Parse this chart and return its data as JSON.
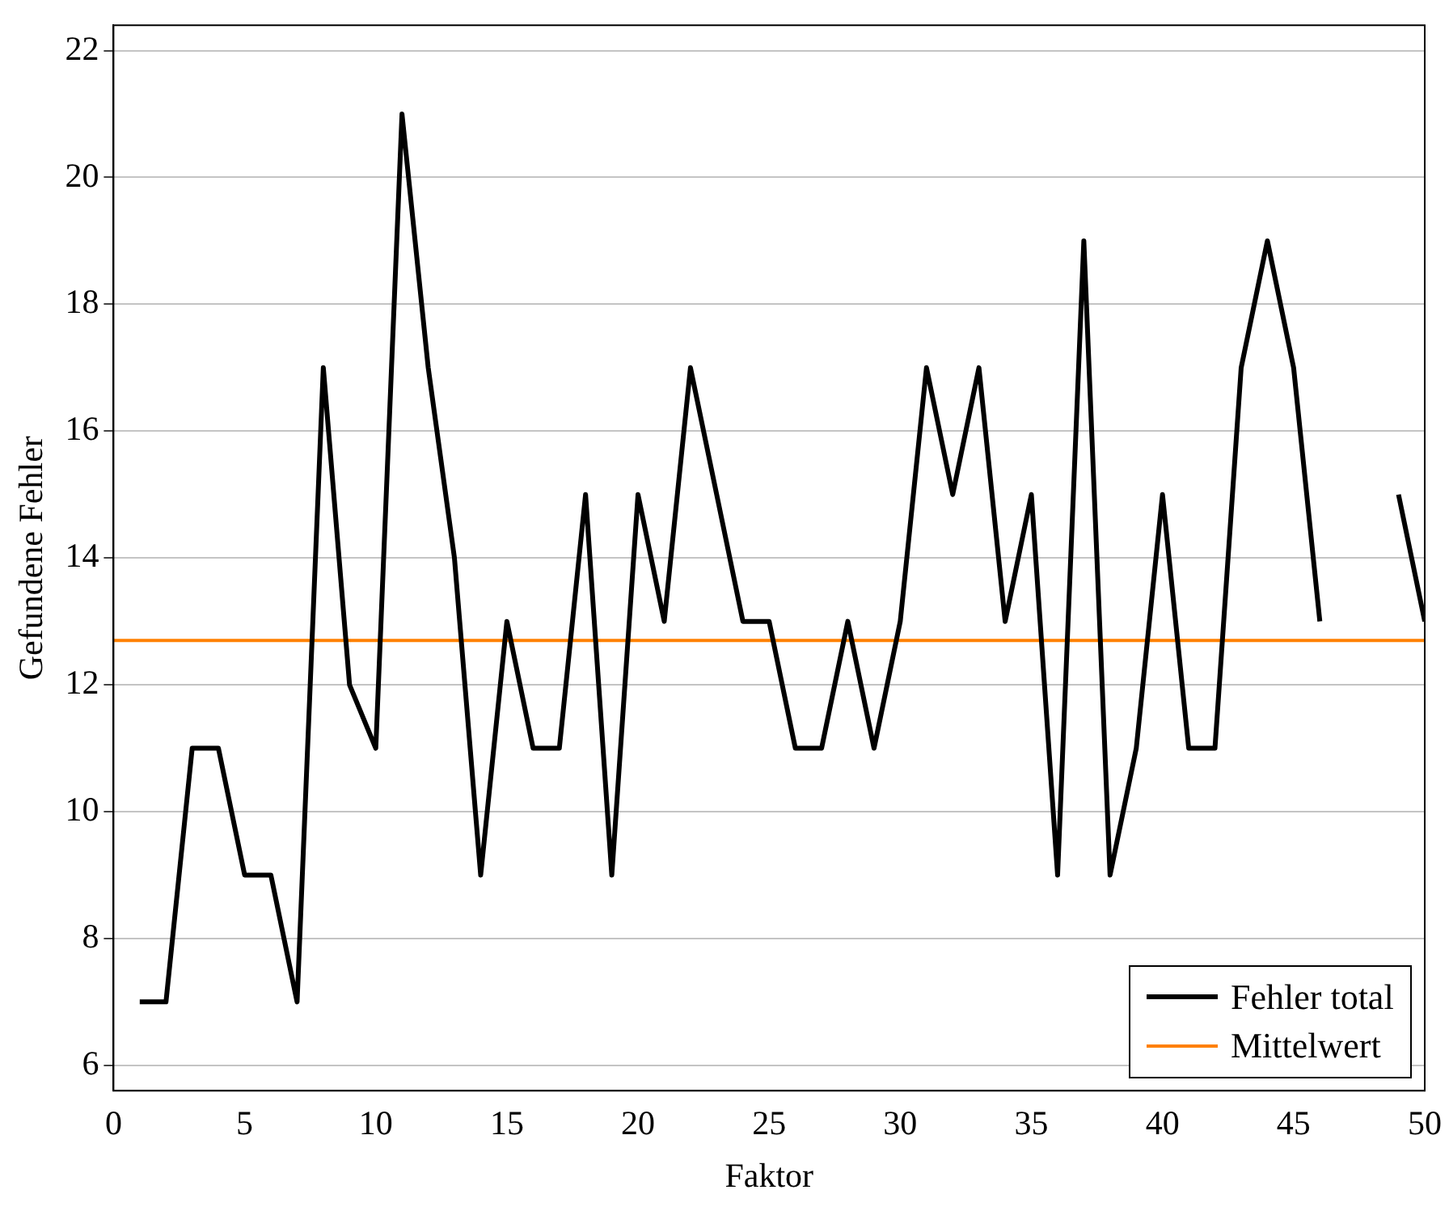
{
  "chart_data": {
    "type": "line",
    "xlabel": "Faktor",
    "ylabel": "Gefundene Fehler",
    "x": [
      1,
      2,
      3,
      4,
      5,
      6,
      7,
      8,
      9,
      10,
      11,
      12,
      13,
      14,
      15,
      16,
      17,
      18,
      19,
      20,
      21,
      22,
      23,
      24,
      25,
      26,
      27,
      28,
      29,
      30,
      31,
      32,
      33,
      34,
      35,
      36,
      37,
      38,
      39,
      40,
      41,
      42,
      43,
      44,
      45,
      46,
      47,
      48,
      49,
      50
    ],
    "series": [
      {
        "name": "Fehler total",
        "color": "#000000",
        "values": [
          7,
          7,
          11,
          11,
          9,
          9,
          7,
          17,
          12,
          11,
          21,
          17,
          14,
          9,
          13,
          11,
          11,
          15,
          9,
          15,
          13,
          17,
          15,
          13,
          13,
          11,
          11,
          13,
          11,
          13,
          17,
          15,
          17,
          13,
          15,
          9,
          19,
          9,
          11,
          15,
          11,
          11,
          17,
          19,
          17,
          13,
          null,
          null,
          15,
          13
        ]
      }
    ],
    "ref_lines": [
      {
        "axis": "y",
        "value": 12.7,
        "label": "Mittelwert",
        "color": "#ff8000",
        "line_style": "solid"
      }
    ],
    "xlim": [
      0,
      50
    ],
    "xticks": [
      0,
      5,
      10,
      15,
      20,
      25,
      30,
      35,
      40,
      45,
      50
    ],
    "ylim": [
      5.6,
      22.4
    ],
    "yticks": [
      6,
      8,
      10,
      12,
      14,
      16,
      18,
      20,
      22
    ],
    "grid": "y",
    "legend": "bottom right",
    "marker": "none",
    "line_style": "solid"
  }
}
